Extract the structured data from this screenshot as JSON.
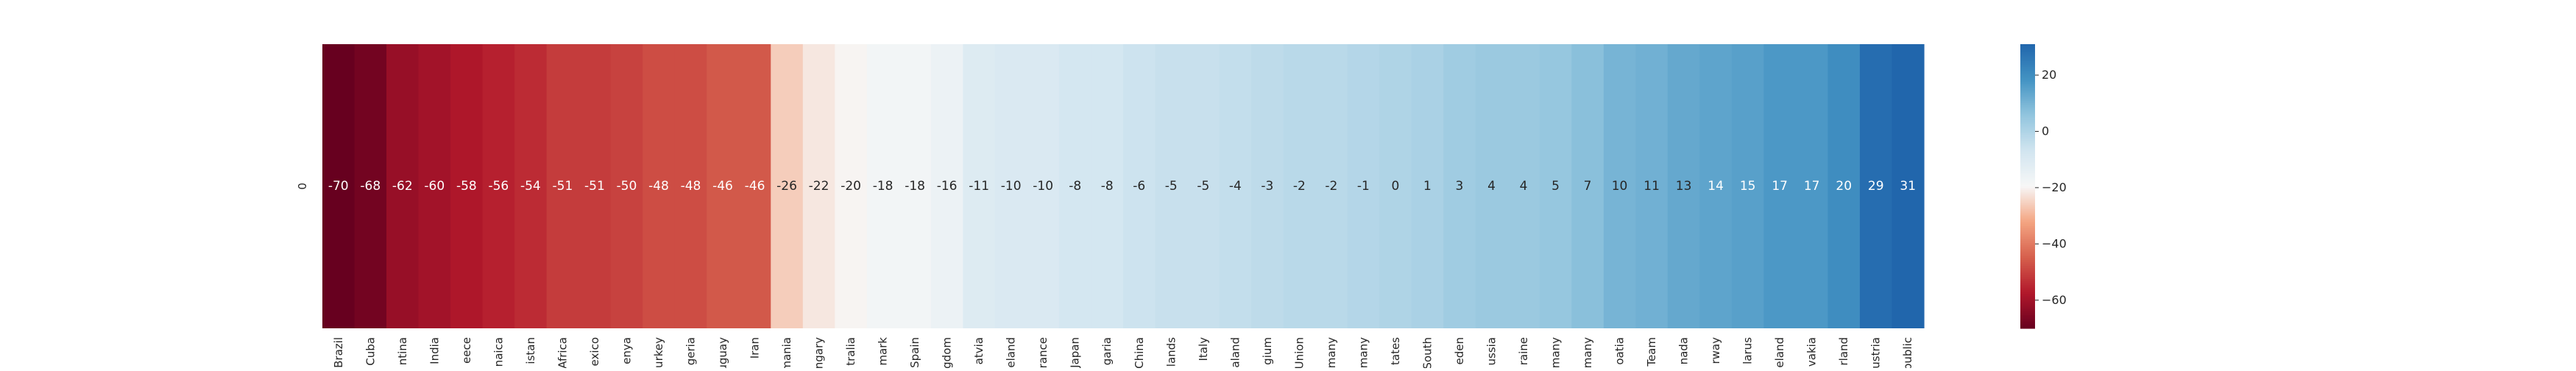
{
  "chart_data": {
    "type": "heatmap",
    "title": "",
    "xlabel": "",
    "ylabel": "",
    "row_labels": [
      "0"
    ],
    "categories": [
      "Brazil",
      "Cuba",
      "ntina",
      "India",
      "eece",
      "naica",
      "istan",
      "Africa",
      "exico",
      "enya",
      "urkey",
      "geria",
      "uguay",
      "Iran",
      "mania",
      "ngary",
      "tralia",
      "mark",
      "Spain",
      "gdom",
      "atvia",
      "eland",
      "rance",
      "Japan",
      "garia",
      "China",
      "lands",
      "Italy",
      "aland",
      "gium",
      "Union",
      "many",
      "many",
      "tates",
      "South",
      "eden",
      "ussia",
      "raine",
      "many",
      "many",
      "oatia",
      "Team",
      "nada",
      "rway",
      "larus",
      "eland",
      "vakia",
      "rland",
      "ustria",
      "public"
    ],
    "values": [
      -70,
      -68,
      -62,
      -60,
      -58,
      -56,
      -54,
      -51,
      -51,
      -50,
      -48,
      -48,
      -46,
      -46,
      -26,
      -22,
      -20,
      -18,
      -18,
      -16,
      -11,
      -10,
      -10,
      -8,
      -8,
      -6,
      -5,
      -5,
      -4,
      -3,
      -2,
      -2,
      -1,
      0,
      1,
      3,
      4,
      4,
      5,
      7,
      10,
      11,
      13,
      14,
      15,
      17,
      17,
      20,
      29,
      31
    ],
    "colorbar": {
      "ticks": [
        20,
        0,
        -20,
        -40,
        -60
      ],
      "min": -70,
      "max": 31,
      "colormap": "RdBu"
    },
    "grid": false,
    "legend": "colorbar-right"
  }
}
